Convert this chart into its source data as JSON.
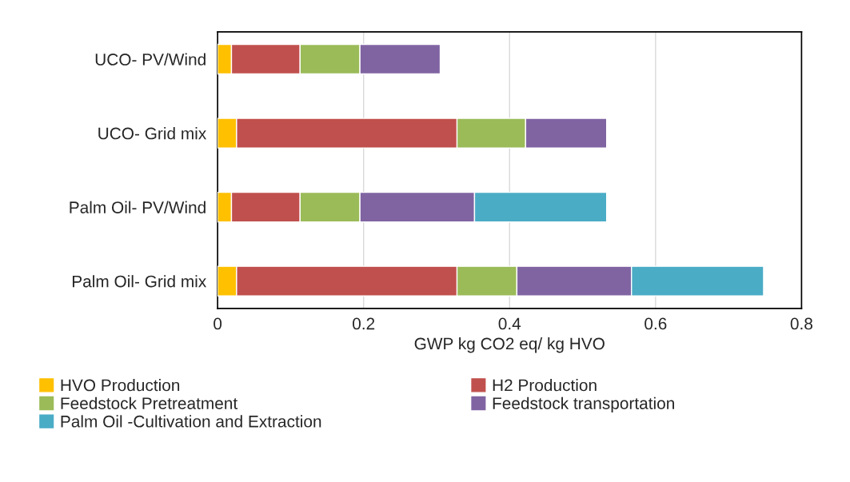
{
  "chart_data": {
    "type": "bar",
    "orientation": "horizontal",
    "stacked": true,
    "categories": [
      "UCO- PV/Wind",
      "UCO- Grid mix",
      "Palm Oil- PV/Wind",
      "Palm Oil- Grid mix"
    ],
    "series": [
      {
        "name": "HVO Production",
        "color": "#ffc000",
        "values": [
          0.019,
          0.026,
          0.019,
          0.026
        ]
      },
      {
        "name": "H2 Production",
        "color": "#c0504d",
        "values": [
          0.094,
          0.302,
          0.094,
          0.302
        ]
      },
      {
        "name": "Feedstock Pretreatment",
        "color": "#9bbb59",
        "values": [
          0.082,
          0.094,
          0.082,
          0.082
        ]
      },
      {
        "name": "Feedstock transportation",
        "color": "#8064a2",
        "values": [
          0.11,
          0.111,
          0.157,
          0.157
        ]
      },
      {
        "name": "Palm Oil -Cultivation and Extraction",
        "color": "#4bacc6",
        "values": [
          null,
          null,
          0.181,
          0.181
        ]
      }
    ],
    "xlabel": "GWP kg CO2 eq/ kg HVO",
    "xlim": [
      0,
      0.8
    ],
    "xticks": [
      0,
      0.2,
      0.4,
      0.6,
      0.8
    ],
    "grid": "x",
    "legend": "bottom"
  }
}
